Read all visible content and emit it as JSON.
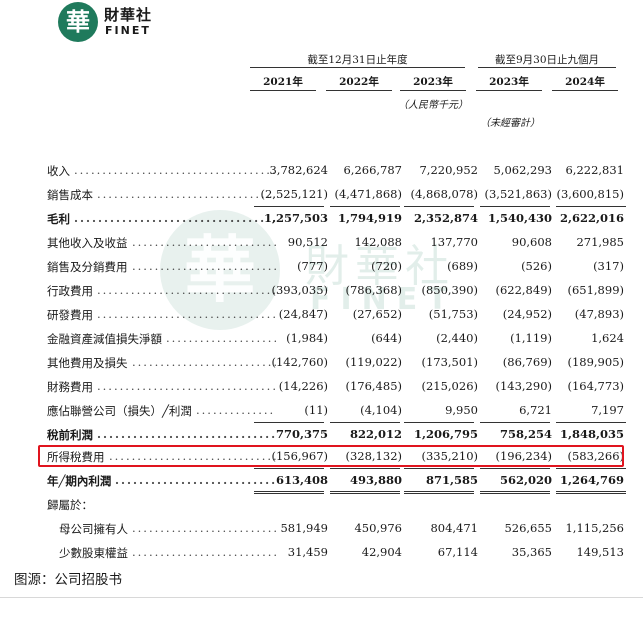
{
  "logo": {
    "glyph": "華",
    "name_cn": "財華社",
    "name_en": "FINET"
  },
  "watermark": {
    "glyph": "華",
    "name_cn": "財華社",
    "name_en": "FINET"
  },
  "header": {
    "group1_title": "截至12月31日止年度",
    "group2_title": "截至9月30日止九個月",
    "years": [
      "2021年",
      "2022年",
      "2023年",
      "2023年",
      "2024年"
    ],
    "unit_note": "（人民幣千元）",
    "audit_note": "（未經審計）"
  },
  "rows": [
    {
      "label": "收入",
      "values": [
        "3,782,624",
        "6,266,787",
        "7,220,952",
        "5,062,293",
        "6,222,831"
      ],
      "bold": false
    },
    {
      "label": "銷售成本",
      "values": [
        "(2,525,121)",
        "(4,471,868)",
        "(4,868,078)",
        "(3,521,863)",
        "(3,600,815)"
      ],
      "bold": false
    },
    {
      "label": "毛利",
      "values": [
        "1,257,503",
        "1,794,919",
        "2,352,874",
        "1,540,430",
        "2,622,016"
      ],
      "bold": true
    },
    {
      "label": "其他收入及收益",
      "values": [
        "90,512",
        "142,088",
        "137,770",
        "90,608",
        "271,985"
      ],
      "bold": false
    },
    {
      "label": "銷售及分銷費用",
      "values": [
        "(777)",
        "(720)",
        "(689)",
        "(526)",
        "(317)"
      ],
      "bold": false
    },
    {
      "label": "行政費用",
      "values": [
        "(393,035)",
        "(786,368)",
        "(850,390)",
        "(622,849)",
        "(651,899)"
      ],
      "bold": false
    },
    {
      "label": "研發費用",
      "values": [
        "(24,847)",
        "(27,652)",
        "(51,753)",
        "(24,952)",
        "(47,893)"
      ],
      "bold": false
    },
    {
      "label": "金融資產減值損失淨額",
      "values": [
        "(1,984)",
        "(644)",
        "(2,440)",
        "(1,119)",
        "1,624"
      ],
      "bold": false
    },
    {
      "label": "其他費用及損失",
      "values": [
        "(142,760)",
        "(119,022)",
        "(173,501)",
        "(86,769)",
        "(189,905)"
      ],
      "bold": false
    },
    {
      "label": "財務費用",
      "values": [
        "(14,226)",
        "(176,485)",
        "(215,026)",
        "(143,290)",
        "(164,773)"
      ],
      "bold": false
    },
    {
      "label": "應佔聯營公司（損失）╱利潤",
      "values": [
        "(11)",
        "(4,104)",
        "9,950",
        "6,721",
        "7,197"
      ],
      "bold": false
    },
    {
      "label": "稅前利潤",
      "values": [
        "770,375",
        "822,012",
        "1,206,795",
        "758,254",
        "1,848,035"
      ],
      "bold": true
    },
    {
      "label": "所得稅費用",
      "values": [
        "(156,967)",
        "(328,132)",
        "(335,210)",
        "(196,234)",
        "(583,266)"
      ],
      "bold": false
    },
    {
      "label": "年╱期內利潤",
      "values": [
        "613,408",
        "493,880",
        "871,585",
        "562,020",
        "1,264,769"
      ],
      "bold": true
    },
    {
      "label": "歸屬於：",
      "values": [
        "",
        "",
        "",
        "",
        ""
      ],
      "bold": false
    },
    {
      "label": "母公司擁有人",
      "values": [
        "581,949",
        "450,976",
        "804,471",
        "526,655",
        "1,115,256"
      ],
      "bold": false
    },
    {
      "label": "少數股東權益",
      "values": [
        "31,459",
        "42,904",
        "67,114",
        "35,365",
        "149,513"
      ],
      "bold": false
    }
  ],
  "source": "图源：公司招股书",
  "highlight_color": "#e0141e",
  "brand_color": "#1f7a5c"
}
